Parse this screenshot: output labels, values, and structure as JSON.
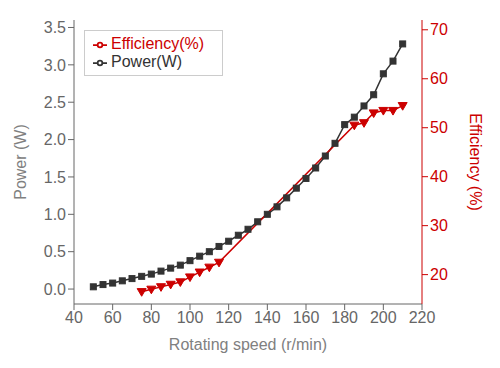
{
  "chart_data": {
    "type": "line",
    "xlabel": "Rotating speed (r/min)",
    "ylabel": "Power (W)",
    "y2label": "Efficiency (%)",
    "xlim": [
      40,
      220
    ],
    "xticks": [
      40,
      60,
      80,
      100,
      120,
      140,
      160,
      180,
      200,
      220
    ],
    "ylim": [
      -0.2,
      3.6
    ],
    "yticks": [
      {
        "value": 0.0,
        "label": "0.0"
      },
      0.5,
      {
        "value": 1.0,
        "label": "1.0"
      },
      1.5,
      {
        "value": 2.0,
        "label": "2.0"
      },
      2.5,
      {
        "value": 3.0,
        "label": "3.0"
      },
      3.5
    ],
    "y2lim": [
      14,
      72
    ],
    "y2ticks": [
      20,
      30,
      40,
      50,
      60,
      70
    ],
    "legend": "upper left",
    "series": [
      {
        "name": "Power(W)",
        "color": "#333333",
        "marker": "square",
        "x": [
          50,
          55,
          60,
          65,
          70,
          75,
          80,
          85,
          90,
          95,
          100,
          105,
          110,
          115,
          120,
          125,
          130,
          135,
          140,
          145,
          150,
          155,
          160,
          165,
          170,
          175,
          180,
          185,
          190,
          195,
          200,
          205,
          210
        ],
        "values": [
          0.03,
          0.06,
          0.08,
          0.11,
          0.14,
          0.17,
          0.2,
          0.24,
          0.28,
          0.32,
          0.38,
          0.44,
          0.5,
          0.57,
          0.64,
          0.72,
          0.8,
          0.9,
          1.0,
          1.1,
          1.22,
          1.35,
          1.48,
          1.62,
          1.78,
          1.95,
          2.2,
          2.3,
          2.45,
          2.6,
          2.88,
          3.05,
          3.28
        ]
      },
      {
        "name": "Efficiency(%)",
        "color": "#cc0000",
        "marker": "triangle-down",
        "axis": "y2",
        "x": [
          75,
          80,
          85,
          90,
          95,
          100,
          105,
          110,
          115,
          185,
          190,
          195,
          200,
          205,
          210
        ],
        "values": [
          16.5,
          17.0,
          17.5,
          18.0,
          18.5,
          19.5,
          20.5,
          21.5,
          22.5,
          50.5,
          51.0,
          53.0,
          53.5,
          53.5,
          54.5
        ]
      }
    ]
  }
}
